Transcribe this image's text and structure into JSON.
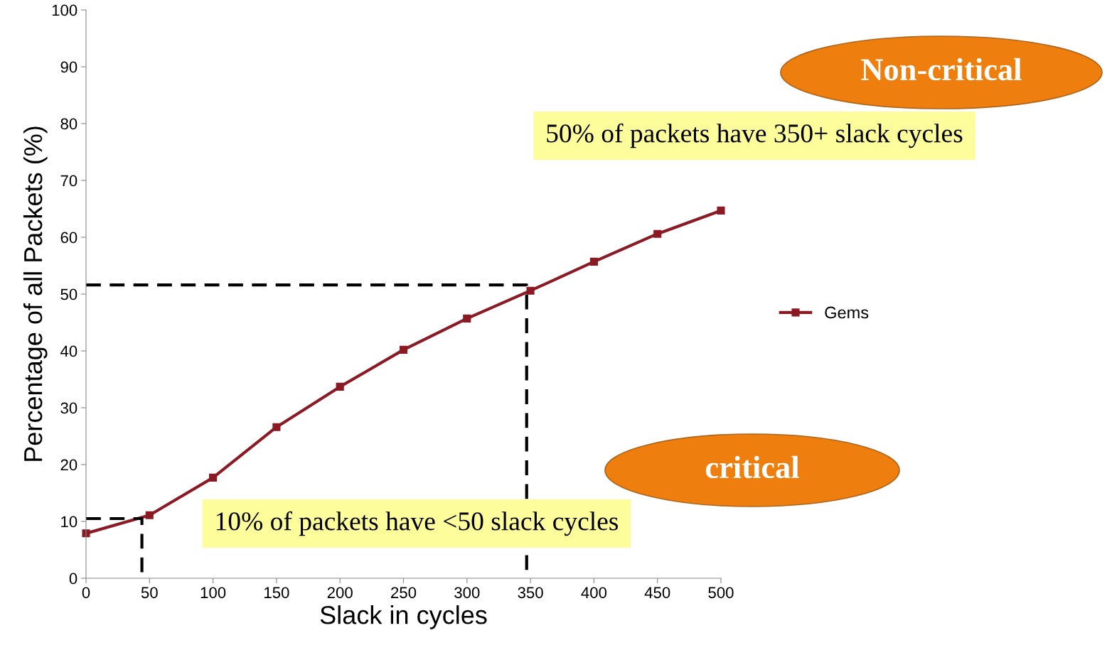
{
  "chart_data": {
    "type": "line",
    "xlabel": "Slack in cycles",
    "ylabel": "Percentage of all Packets (%)",
    "x": [
      0,
      50,
      100,
      150,
      200,
      250,
      300,
      350,
      400,
      450,
      500
    ],
    "series": [
      {
        "name": "Gems",
        "color": "#8b1a24",
        "marker": "square",
        "line_style": "solid",
        "values": [
          7.9,
          11.1,
          17.7,
          26.6,
          33.7,
          40.2,
          45.7,
          50.6,
          55.7,
          60.6,
          64.7
        ]
      },
      {
        "color": "#000000",
        "marker": "none",
        "line_style": "dashed",
        "x": [
          0,
          347,
          347
        ],
        "values": [
          51.6,
          51.6,
          0
        ]
      },
      {
        "color": "#000000",
        "marker": "none",
        "line_style": "dashed",
        "x": [
          0,
          44,
          44
        ],
        "values": [
          10.5,
          10.5,
          0
        ]
      }
    ],
    "xlim": [
      0,
      500
    ],
    "xticks": [
      0,
      50,
      100,
      150,
      200,
      250,
      300,
      350,
      400,
      450,
      500
    ],
    "ylim": [
      0,
      100
    ],
    "yticks": [
      0,
      10,
      20,
      30,
      40,
      50,
      60,
      70,
      80,
      90,
      100
    ],
    "grid": false,
    "legend": "right",
    "annotations": [
      "Non-critical",
      "50% of packets have 350+ slack cycles",
      "critical",
      "10% of packets have <50 slack cycles"
    ]
  }
}
